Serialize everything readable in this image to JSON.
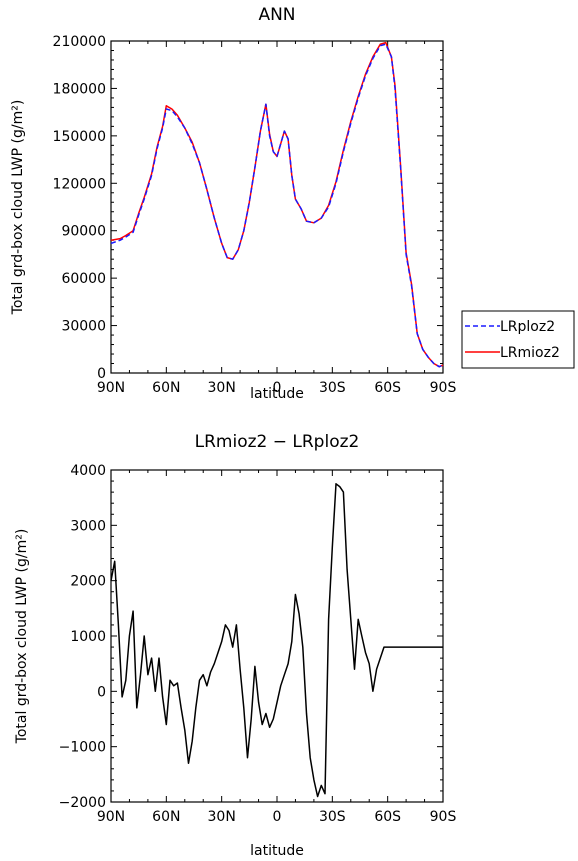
{
  "chart_data": [
    {
      "type": "line",
      "title": "ANN",
      "xlabel": "latitude",
      "ylabel": "Total grd-box cloud LWP (g/m²)",
      "x_ticks": [
        "90N",
        "60N",
        "30N",
        "0",
        "30S",
        "60S",
        "90S"
      ],
      "y_ticks": [
        "0",
        "30000",
        "60000",
        "90000",
        "120000",
        "150000",
        "180000",
        "210000"
      ],
      "xlim": [
        90,
        -90
      ],
      "ylim": [
        0,
        210000
      ],
      "legend": "right",
      "series": [
        {
          "name": "LRploz2",
          "color": "#1a1aff",
          "dash": "dashed",
          "x": [
            90,
            85,
            82,
            78,
            75,
            72,
            68,
            65,
            62,
            60,
            57,
            54,
            50,
            46,
            42,
            38,
            34,
            30,
            27,
            24,
            21,
            18,
            15,
            12,
            9,
            6,
            4,
            2,
            0,
            -2,
            -4,
            -6,
            -8,
            -10,
            -13,
            -16,
            -20,
            -24,
            -28,
            -32,
            -36,
            -40,
            -44,
            -48,
            -52,
            -56,
            -59,
            -62,
            -64,
            -67,
            -70,
            -73,
            -76,
            -79,
            -82,
            -85,
            -88,
            -90
          ],
          "values": [
            82000,
            84000,
            86000,
            89000,
            100000,
            110000,
            125000,
            142000,
            155000,
            167000,
            166000,
            162000,
            155000,
            145000,
            133000,
            116000,
            98000,
            82000,
            73000,
            72000,
            78000,
            90000,
            108000,
            130000,
            153000,
            170000,
            150000,
            140000,
            137000,
            145000,
            153000,
            148000,
            125000,
            110000,
            104000,
            96000,
            95000,
            98000,
            105000,
            120000,
            140000,
            158000,
            174000,
            188000,
            199000,
            207000,
            208000,
            200000,
            180000,
            130000,
            75000,
            55000,
            25000,
            15000,
            10000,
            6000,
            4000,
            5000
          ]
        },
        {
          "name": "LRmioz2",
          "color": "#ff0000",
          "dash": "solid",
          "x": [
            90,
            85,
            82,
            78,
            75,
            72,
            68,
            65,
            62,
            60,
            57,
            54,
            50,
            46,
            42,
            38,
            34,
            30,
            27,
            24,
            21,
            18,
            15,
            12,
            9,
            6,
            4,
            2,
            0,
            -2,
            -4,
            -6,
            -8,
            -10,
            -13,
            -16,
            -20,
            -24,
            -28,
            -32,
            -36,
            -40,
            -44,
            -48,
            -52,
            -56,
            -59,
            -62,
            -64,
            -67,
            -70,
            -73,
            -76,
            -79,
            -82,
            -85,
            -88,
            -90
          ],
          "values": [
            84000,
            85000,
            87000,
            90000,
            101000,
            111000,
            126000,
            143000,
            156000,
            169000,
            167000,
            163000,
            155000,
            146000,
            133000,
            116000,
            98000,
            82000,
            73000,
            72000,
            78000,
            90000,
            108000,
            130000,
            153000,
            170000,
            151000,
            140000,
            137000,
            145000,
            153000,
            148000,
            125000,
            110000,
            104000,
            96000,
            95000,
            98000,
            106000,
            121000,
            141000,
            159000,
            175000,
            189000,
            200000,
            208000,
            209000,
            200000,
            182000,
            131000,
            76000,
            56000,
            25000,
            15000,
            10000,
            6000,
            4000,
            5000
          ]
        }
      ]
    },
    {
      "type": "line",
      "title": "LRmioz2 − LRploz2",
      "xlabel": "latitude",
      "ylabel": "Total grd-box cloud LWP (g/m²)",
      "x_ticks": [
        "90N",
        "60N",
        "30N",
        "0",
        "30S",
        "60S",
        "90S"
      ],
      "y_ticks": [
        "−2000",
        "−1000",
        "0",
        "1000",
        "2000",
        "3000",
        "4000"
      ],
      "xlim": [
        90,
        -90
      ],
      "ylim": [
        -2000,
        4000
      ],
      "series": [
        {
          "color": "#000000",
          "dash": "solid",
          "x": [
            90,
            88,
            86,
            84,
            82,
            80,
            78,
            76,
            74,
            72,
            70,
            68,
            66,
            64,
            62,
            60,
            58,
            56,
            54,
            52,
            50,
            48,
            46,
            44,
            42,
            40,
            38,
            36,
            34,
            32,
            30,
            28,
            26,
            24,
            22,
            20,
            18,
            16,
            14,
            12,
            10,
            8,
            6,
            4,
            2,
            0,
            -2,
            -4,
            -6,
            -8,
            -10,
            -12,
            -14,
            -16,
            -18,
            -20,
            -22,
            -24,
            -26,
            -28,
            -30,
            -32,
            -34,
            -36,
            -38,
            -40,
            -42,
            -44,
            -46,
            -48,
            -50,
            -52,
            -54,
            -56,
            -58,
            -60,
            -62,
            -64,
            -66,
            -68,
            -70,
            -72,
            -74,
            -76,
            -78,
            -80,
            -82,
            -84,
            -86,
            -88,
            -90
          ],
          "values": [
            2000,
            2350,
            1200,
            -100,
            200,
            1000,
            1450,
            -300,
            300,
            1000,
            300,
            600,
            0,
            600,
            -100,
            -600,
            200,
            100,
            150,
            -300,
            -700,
            -1300,
            -900,
            -300,
            200,
            300,
            100,
            350,
            500,
            700,
            900,
            1200,
            1100,
            800,
            1200,
            400,
            -300,
            -1200,
            -500,
            450,
            -200,
            -600,
            -400,
            -650,
            -500,
            -200,
            100,
            300,
            500,
            900,
            1750,
            1400,
            800,
            -400,
            -1200,
            -1600,
            -1900,
            -1700,
            -1850,
            1300,
            2600,
            3750,
            3700,
            3600,
            2200,
            1300,
            400,
            1300,
            1000,
            700,
            500,
            0,
            400,
            600,
            800,
            800,
            800,
            800,
            800,
            800,
            800,
            800,
            800,
            800,
            800,
            800,
            800,
            800,
            800,
            800,
            800
          ]
        }
      ]
    }
  ]
}
